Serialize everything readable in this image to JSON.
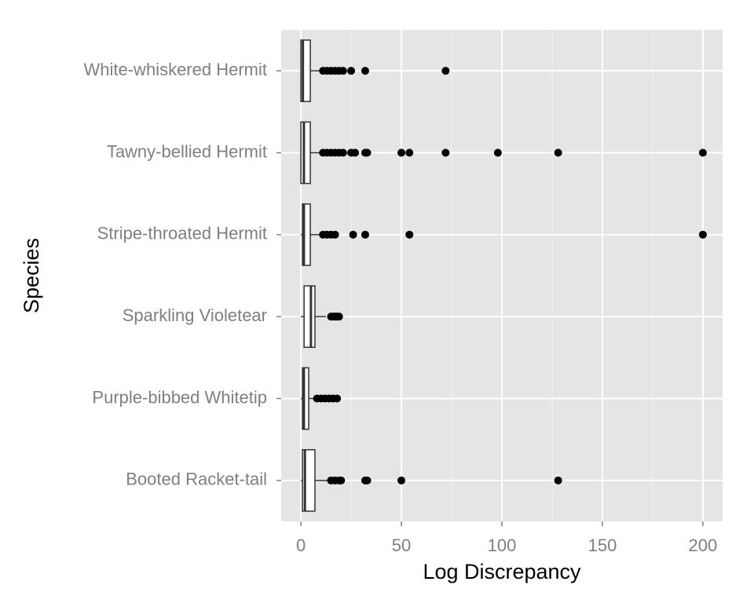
{
  "chart_data": {
    "type": "boxplot",
    "orientation": "horizontal",
    "x_label": "Log Discrepancy",
    "y_label": "Species",
    "categories": [
      "Booted Racket-tail",
      "Purple-bibbed Whitetip",
      "Sparkling Violetear",
      "Stripe-throated Hermit",
      "Tawny-bellied Hermit",
      "White-whiskered Hermit"
    ],
    "boxes": [
      {
        "min": 0,
        "q1": 0.8,
        "median": 2,
        "q3": 7,
        "max": 14,
        "outliers": [
          15,
          17,
          19,
          20,
          32,
          33,
          50,
          128
        ]
      },
      {
        "min": 0,
        "q1": 0.8,
        "median": 1.5,
        "q3": 3.9,
        "max": 7.5,
        "outliers": [
          8,
          10,
          12,
          14,
          16,
          18
        ]
      },
      {
        "min": 0,
        "q1": 1.6,
        "median": 5,
        "q3": 7,
        "max": 12.5,
        "outliers": [
          15,
          16,
          17,
          18,
          19
        ]
      },
      {
        "min": 0,
        "q1": 0.8,
        "median": 1.5,
        "q3": 4.7,
        "max": 10,
        "outliers": [
          11,
          13,
          15,
          17,
          26,
          32,
          54,
          200
        ]
      },
      {
        "min": 0,
        "q1": 0,
        "median": 1.5,
        "q3": 4.7,
        "max": 10,
        "outliers": [
          11,
          13,
          15,
          17,
          19,
          21,
          25,
          27,
          32,
          33,
          50,
          54,
          72,
          98,
          128,
          200
        ]
      },
      {
        "min": 0,
        "q1": 0,
        "median": 1,
        "q3": 4.7,
        "max": 10,
        "outliers": [
          11,
          13,
          15,
          17,
          19,
          21,
          25,
          32,
          72
        ]
      }
    ],
    "xlim": [
      -9.8,
      209.8
    ],
    "xticks": [
      0,
      50,
      100,
      150,
      200
    ],
    "xminorticks": [
      25,
      75,
      125,
      175
    ],
    "grid": true,
    "background": "#e5e5e5",
    "box_fill": "#ffffff",
    "box_stroke": "#333333",
    "outlier_color": "#000000"
  }
}
